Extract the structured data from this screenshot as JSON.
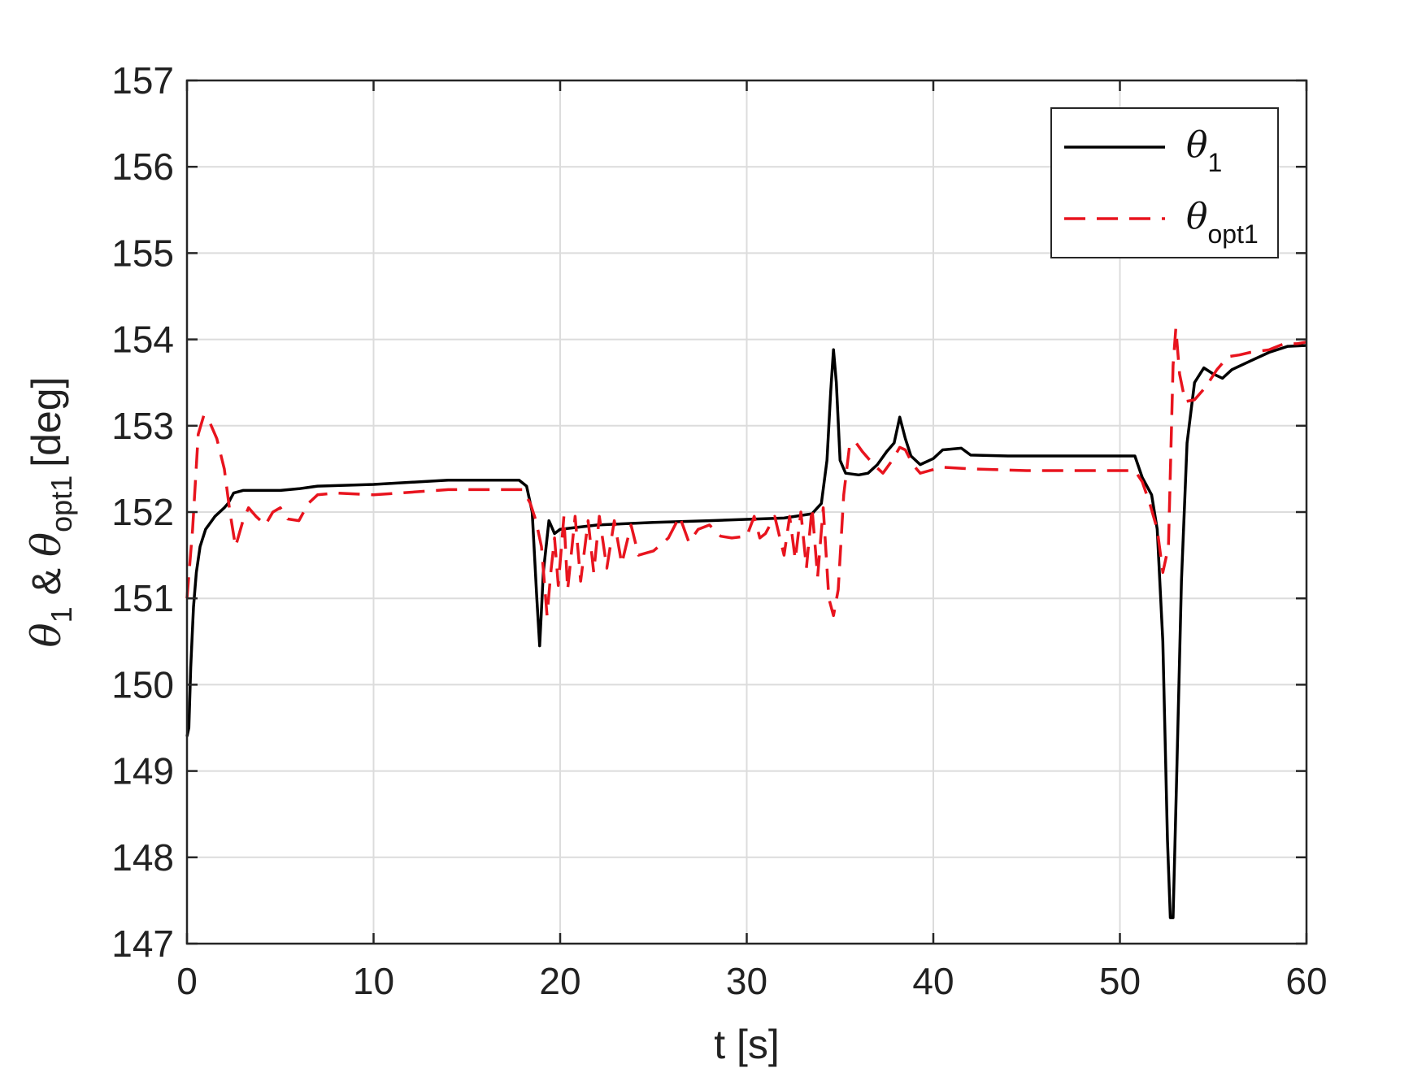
{
  "chart_data": {
    "type": "line",
    "xlabel": "t [s]",
    "ylabel_parts": {
      "theta1_symbol": "θ",
      "theta1_sub": "1",
      "amp": "&",
      "thetaopt_symbol": "θ",
      "thetaopt_sub": "opt1",
      "unit": "[deg]"
    },
    "xlim": [
      0,
      60
    ],
    "ylim": [
      147,
      157
    ],
    "xticks": [
      "0",
      "10",
      "20",
      "30",
      "40",
      "50",
      "60"
    ],
    "yticks": [
      "147",
      "148",
      "149",
      "150",
      "151",
      "152",
      "153",
      "154",
      "155",
      "156",
      "157"
    ],
    "grid": true,
    "legend_position": "top-right",
    "series": [
      {
        "name": "θ1",
        "legend_symbol": "θ",
        "legend_sub": "1",
        "color": "#000000",
        "style": "solid",
        "points": [
          [
            0.0,
            149.4
          ],
          [
            0.1,
            149.5
          ],
          [
            0.2,
            150.2
          ],
          [
            0.35,
            150.9
          ],
          [
            0.5,
            151.3
          ],
          [
            0.7,
            151.6
          ],
          [
            1.0,
            151.8
          ],
          [
            1.5,
            151.95
          ],
          [
            2.0,
            152.05
          ],
          [
            2.2,
            152.1
          ],
          [
            2.5,
            152.22
          ],
          [
            3.0,
            152.25
          ],
          [
            5.0,
            152.25
          ],
          [
            6.0,
            152.27
          ],
          [
            7.0,
            152.3
          ],
          [
            10.0,
            152.32
          ],
          [
            14.0,
            152.37
          ],
          [
            17.8,
            152.37
          ],
          [
            18.2,
            152.3
          ],
          [
            18.5,
            152.0
          ],
          [
            18.75,
            151.0
          ],
          [
            18.9,
            150.45
          ],
          [
            19.1,
            151.3
          ],
          [
            19.4,
            151.9
          ],
          [
            19.7,
            151.75
          ],
          [
            20.0,
            151.8
          ],
          [
            22.0,
            151.85
          ],
          [
            25.0,
            151.88
          ],
          [
            28.0,
            151.9
          ],
          [
            32.0,
            151.93
          ],
          [
            33.5,
            151.98
          ],
          [
            34.0,
            152.1
          ],
          [
            34.3,
            152.6
          ],
          [
            34.5,
            153.4
          ],
          [
            34.65,
            153.88
          ],
          [
            34.8,
            153.5
          ],
          [
            35.0,
            152.6
          ],
          [
            35.3,
            152.45
          ],
          [
            36.0,
            152.43
          ],
          [
            36.5,
            152.45
          ],
          [
            37.0,
            152.55
          ],
          [
            37.5,
            152.7
          ],
          [
            37.9,
            152.8
          ],
          [
            38.2,
            153.1
          ],
          [
            38.5,
            152.85
          ],
          [
            38.8,
            152.65
          ],
          [
            39.3,
            152.55
          ],
          [
            40.0,
            152.62
          ],
          [
            40.5,
            152.72
          ],
          [
            41.5,
            152.74
          ],
          [
            42.0,
            152.66
          ],
          [
            44.0,
            152.65
          ],
          [
            48.0,
            152.65
          ],
          [
            50.8,
            152.65
          ],
          [
            51.2,
            152.4
          ],
          [
            51.7,
            152.2
          ],
          [
            52.0,
            151.8
          ],
          [
            52.3,
            150.5
          ],
          [
            52.55,
            148.2
          ],
          [
            52.7,
            147.3
          ],
          [
            52.85,
            147.3
          ],
          [
            53.05,
            149.0
          ],
          [
            53.3,
            151.2
          ],
          [
            53.6,
            152.8
          ],
          [
            54.0,
            153.5
          ],
          [
            54.5,
            153.67
          ],
          [
            55.0,
            153.6
          ],
          [
            55.5,
            153.55
          ],
          [
            56.0,
            153.65
          ],
          [
            57.0,
            153.75
          ],
          [
            58.0,
            153.85
          ],
          [
            59.0,
            153.92
          ],
          [
            60.0,
            153.93
          ]
        ]
      },
      {
        "name": "θopt1",
        "legend_symbol": "θ",
        "legend_sub": "opt1",
        "color": "#e8141e",
        "style": "dashed",
        "points": [
          [
            0.0,
            151.0
          ],
          [
            0.3,
            151.8
          ],
          [
            0.6,
            152.9
          ],
          [
            0.9,
            153.12
          ],
          [
            1.2,
            153.05
          ],
          [
            1.6,
            152.85
          ],
          [
            2.0,
            152.5
          ],
          [
            2.3,
            152.0
          ],
          [
            2.6,
            151.6
          ],
          [
            3.0,
            151.9
          ],
          [
            3.3,
            152.05
          ],
          [
            3.7,
            151.95
          ],
          [
            4.2,
            151.85
          ],
          [
            4.6,
            152.0
          ],
          [
            5.0,
            152.05
          ],
          [
            5.4,
            151.92
          ],
          [
            6.0,
            151.9
          ],
          [
            6.5,
            152.1
          ],
          [
            7.0,
            152.2
          ],
          [
            8.0,
            152.22
          ],
          [
            10.0,
            152.2
          ],
          [
            12.0,
            152.23
          ],
          [
            14.0,
            152.26
          ],
          [
            16.0,
            152.26
          ],
          [
            18.0,
            152.26
          ],
          [
            18.4,
            152.1
          ],
          [
            18.7,
            151.9
          ],
          [
            19.0,
            151.6
          ],
          [
            19.3,
            150.8
          ],
          [
            19.5,
            151.3
          ],
          [
            19.7,
            151.7
          ],
          [
            19.9,
            151.15
          ],
          [
            20.2,
            151.95
          ],
          [
            20.4,
            151.1
          ],
          [
            20.8,
            151.95
          ],
          [
            21.1,
            151.2
          ],
          [
            21.5,
            151.9
          ],
          [
            21.8,
            151.3
          ],
          [
            22.1,
            151.95
          ],
          [
            22.5,
            151.35
          ],
          [
            22.9,
            151.9
          ],
          [
            23.3,
            151.4
          ],
          [
            23.8,
            151.85
          ],
          [
            24.2,
            151.5
          ],
          [
            25.0,
            151.55
          ],
          [
            25.8,
            151.7
          ],
          [
            26.4,
            151.95
          ],
          [
            26.9,
            151.65
          ],
          [
            27.4,
            151.8
          ],
          [
            28.0,
            151.85
          ],
          [
            28.6,
            151.72
          ],
          [
            29.2,
            151.7
          ],
          [
            30.0,
            151.72
          ],
          [
            30.4,
            151.95
          ],
          [
            30.7,
            151.7
          ],
          [
            31.0,
            151.75
          ],
          [
            31.5,
            151.95
          ],
          [
            32.0,
            151.5
          ],
          [
            32.3,
            151.95
          ],
          [
            32.6,
            151.45
          ],
          [
            32.9,
            152.0
          ],
          [
            33.2,
            151.35
          ],
          [
            33.5,
            152.05
          ],
          [
            33.8,
            151.25
          ],
          [
            34.1,
            152.05
          ],
          [
            34.4,
            151.0
          ],
          [
            34.65,
            150.8
          ],
          [
            34.9,
            151.1
          ],
          [
            35.2,
            152.2
          ],
          [
            35.5,
            152.75
          ],
          [
            35.8,
            152.82
          ],
          [
            36.2,
            152.7
          ],
          [
            36.8,
            152.55
          ],
          [
            37.3,
            152.45
          ],
          [
            37.8,
            152.6
          ],
          [
            38.2,
            152.75
          ],
          [
            38.5,
            152.72
          ],
          [
            38.9,
            152.55
          ],
          [
            39.3,
            152.45
          ],
          [
            39.8,
            152.48
          ],
          [
            40.5,
            152.52
          ],
          [
            42.0,
            152.5
          ],
          [
            45.0,
            152.48
          ],
          [
            48.0,
            152.48
          ],
          [
            50.8,
            152.48
          ],
          [
            51.2,
            152.35
          ],
          [
            51.6,
            152.1
          ],
          [
            52.0,
            151.8
          ],
          [
            52.3,
            151.3
          ],
          [
            52.6,
            151.6
          ],
          [
            52.85,
            153.7
          ],
          [
            53.0,
            154.13
          ],
          [
            53.2,
            153.6
          ],
          [
            53.5,
            153.28
          ],
          [
            54.0,
            153.3
          ],
          [
            54.6,
            153.45
          ],
          [
            55.2,
            153.65
          ],
          [
            55.8,
            153.8
          ],
          [
            56.4,
            153.82
          ],
          [
            57.0,
            153.85
          ],
          [
            58.0,
            153.88
          ],
          [
            58.8,
            153.95
          ],
          [
            59.5,
            153.95
          ],
          [
            60.0,
            153.97
          ]
        ]
      }
    ]
  }
}
